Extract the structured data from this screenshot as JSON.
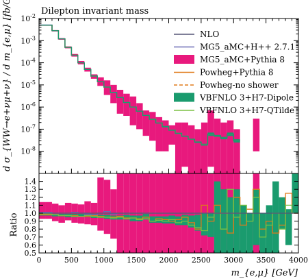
{
  "chart_data": [
    {
      "type": "line",
      "title": "Dilepton invariant mass",
      "xlabel": "",
      "ylabel": "d σ_{WW→e+νμ+ν} / d m_{e,μ} [fb/GeV]",
      "yscale": "log",
      "xlim": [
        0,
        4000
      ],
      "ylim": [
        1e-09,
        0.01
      ],
      "ytick_labels": [
        "10^-2",
        "10^-3",
        "10^-4",
        "10^-5",
        "10^-6",
        "10^-7",
        "10^-8"
      ],
      "bin_width": 100,
      "legend_position": "top-right",
      "series": [
        {
          "name": "NLO",
          "color": "#555577",
          "style": "step",
          "values": [
            0.005,
            0.005,
            0.0028,
            0.0012,
            0.0005,
            0.00022,
            0.0001,
            5e-05,
            2.6e-05,
            1.4e-05,
            8e-06,
            4.5e-06,
            2.7e-06,
            1.6e-06,
            1e-06,
            6.5e-07,
            4.2e-07,
            2.8e-07,
            1.9e-07,
            1.3e-07,
            9e-08,
            6.5e-08,
            4.8e-08,
            3.5e-08,
            2.6e-08,
            2e-08,
            6e-08,
            5e-08,
            4e-08,
            6e-08,
            3e-08,
            null,
            null,
            null,
            null,
            null,
            null,
            null,
            null,
            null
          ]
        },
        {
          "name": "MG5_aMC+H++ 2.7.1",
          "color": "#6a6ab5",
          "style": "step",
          "values": [
            0.0051,
            0.0051,
            0.0028,
            0.0012,
            0.0005,
            0.00022,
            0.0001,
            5e-05,
            2.5e-05,
            1.4e-05,
            8e-06,
            4.6e-06,
            2.7e-06,
            1.6e-06,
            1e-06,
            6.5e-07,
            4.2e-07,
            2.8e-07,
            1.9e-07,
            1.3e-07,
            9e-08,
            6.5e-08,
            4.8e-08,
            3.5e-08,
            2.6e-08,
            2e-08,
            6e-08,
            5e-08,
            4e-08,
            6e-08,
            3e-08,
            null,
            null,
            null,
            null,
            null,
            null,
            null,
            null,
            null
          ]
        },
        {
          "name": "MG5_aMC+Pythia 8",
          "color": "#e8197d",
          "style": "band",
          "values": [
            0.005,
            0.005,
            0.0028,
            0.0012,
            0.0005,
            0.00022,
            0.0001,
            5e-05,
            2.5e-05,
            1.4e-05,
            8e-06,
            4.5e-06,
            2.7e-06,
            1.6e-06,
            1e-06,
            6.5e-07,
            4.2e-07,
            2.8e-07,
            1.9e-07,
            1.3e-07,
            9e-08,
            6.5e-08,
            4.8e-08,
            3.5e-08,
            2.6e-08,
            2e-08,
            6e-08,
            5e-08,
            4e-08,
            6e-08,
            3e-08,
            null,
            null,
            null,
            null,
            null,
            null,
            null,
            null,
            null
          ],
          "low": [
            0.0047,
            0.0047,
            0.0026,
            0.0011,
            0.00045,
            0.00019,
            8.5e-05,
            4e-05,
            1.9e-05,
            9e-06,
            3.5e-06,
            1.5e-06,
            5e-07,
            4e-07,
            1.5e-07,
            1e-07,
            5e-08,
            3e-08,
            1e-08,
            1e-08,
            2e-08,
            1e-09,
            2e-09,
            1e-09,
            1e-09,
            1e-09,
            2e-09,
            1e-09,
            1e-09,
            1e-09,
            1e-09,
            null,
            null,
            1e-08,
            null,
            null,
            null,
            null,
            null,
            null
          ],
          "high": [
            0.0052,
            0.0052,
            0.003,
            0.0013,
            0.00055,
            0.00025,
            0.00012,
            6e-05,
            3e-05,
            2.2e-05,
            1.6e-05,
            1e-05,
            6e-06,
            4e-06,
            3e-06,
            1.5e-06,
            7e-07,
            6e-07,
            3.5e-07,
            2.5e-07,
            1.5e-07,
            2e-07,
            2e-07,
            1.5e-07,
            1e-07,
            2e-07,
            7e-07,
            3e-07,
            2e-07,
            2.5e-07,
            1e-07,
            null,
            null,
            3e-07,
            null,
            null,
            null,
            null,
            null,
            null
          ]
        },
        {
          "name": "Powheg+Pythia 8",
          "color": "#e07a1a",
          "style": "step",
          "values": [
            0.005,
            0.005,
            0.0028,
            0.0012,
            0.0005,
            0.00022,
            0.0001,
            5e-05,
            2.5e-05,
            1.4e-05,
            8e-06,
            4.5e-06,
            2.7e-06,
            1.6e-06,
            1e-06,
            6.5e-07,
            4.2e-07,
            2.8e-07,
            1.9e-07,
            1.3e-07,
            9e-08,
            6.5e-08,
            4.8e-08,
            3.5e-08,
            2.6e-08,
            2e-08,
            6e-08,
            5e-08,
            4e-08,
            6e-08,
            3e-08,
            null,
            null,
            null,
            null,
            null,
            null,
            null,
            null,
            null
          ]
        },
        {
          "name": "Powheg-no shower",
          "color": "#e07a1a",
          "style": "dashed",
          "values": [
            0.005,
            0.005,
            0.0028,
            0.0012,
            0.0005,
            0.00022,
            0.0001,
            5e-05,
            2.5e-05,
            1.4e-05,
            8e-06,
            4.5e-06,
            2.7e-06,
            1.6e-06,
            1e-06,
            6.5e-07,
            4.2e-07,
            2.8e-07,
            1.9e-07,
            1.3e-07,
            9e-08,
            6.5e-08,
            4.8e-08,
            3.5e-08,
            2.6e-08,
            2e-08,
            6e-08,
            5e-08,
            4e-08,
            6e-08,
            3e-08,
            null,
            null,
            null,
            null,
            null,
            null,
            null,
            null,
            null
          ]
        },
        {
          "name": "VBFNLO 3+H7-Dipole",
          "color": "#1a9b6e",
          "style": "band",
          "values": [
            0.005,
            0.005,
            0.0028,
            0.0012,
            0.0005,
            0.00022,
            0.0001,
            5e-05,
            2.5e-05,
            1.4e-05,
            8e-06,
            4.5e-06,
            2.7e-06,
            1.6e-06,
            1e-06,
            6.5e-07,
            4.2e-07,
            2.8e-07,
            1.9e-07,
            1.3e-07,
            9e-08,
            6.5e-08,
            4.8e-08,
            3.5e-08,
            2.6e-08,
            2e-08,
            6e-08,
            5e-08,
            4e-08,
            6e-08,
            3e-08,
            null,
            null,
            null,
            null,
            null,
            null,
            null,
            null,
            null
          ],
          "low": [
            0.0048,
            0.0048,
            0.0027,
            0.00115,
            0.00048,
            0.00021,
            9.6e-05,
            4.8e-05,
            2.4e-05,
            1.35e-05,
            7.7e-06,
            4.3e-06,
            2.6e-06,
            1.5e-06,
            9.5e-07,
            6.2e-07,
            4e-07,
            2.6e-07,
            1.8e-07,
            1.2e-07,
            8.5e-08,
            6e-08,
            4.5e-08,
            3.3e-08,
            2.4e-08,
            1.8e-08,
            5e-08,
            4.5e-08,
            3.5e-08,
            5e-08,
            2.5e-08,
            null,
            null,
            null,
            null,
            null,
            null,
            null,
            null,
            null
          ],
          "high": [
            0.0052,
            0.0052,
            0.0029,
            0.00125,
            0.00052,
            0.00023,
            0.000104,
            5.2e-05,
            2.6e-05,
            1.45e-05,
            8.3e-06,
            4.7e-06,
            2.8e-06,
            1.7e-06,
            1.05e-06,
            6.8e-07,
            4.4e-07,
            3e-07,
            2e-07,
            1.4e-07,
            9.5e-08,
            7e-08,
            5.1e-08,
            3.7e-08,
            2.8e-08,
            2.2e-08,
            7e-08,
            5.5e-08,
            4.5e-08,
            7e-08,
            3.5e-08,
            null,
            null,
            null,
            null,
            null,
            null,
            null,
            null,
            null
          ]
        },
        {
          "name": "VBFNLO 3+H7-QTilde",
          "color": "#7bc043",
          "style": "step",
          "values": [
            0.005,
            0.005,
            0.0028,
            0.0012,
            0.0005,
            0.00022,
            0.0001,
            5e-05,
            2.5e-05,
            1.4e-05,
            8e-06,
            4.5e-06,
            2.7e-06,
            1.6e-06,
            1e-06,
            6.5e-07,
            4.2e-07,
            2.8e-07,
            1.9e-07,
            1.3e-07,
            9e-08,
            6.5e-08,
            4.8e-08,
            3.5e-08,
            2.6e-08,
            2e-08,
            6e-08,
            5e-08,
            4e-08,
            6e-08,
            3e-08,
            null,
            null,
            null,
            null,
            null,
            null,
            null,
            null,
            null
          ]
        }
      ]
    },
    {
      "type": "line",
      "title": "",
      "xlabel": "m_{e,μ} [GeV]",
      "ylabel": "Ratio",
      "xlim": [
        0,
        4000
      ],
      "ylim": [
        0.5,
        1.5
      ],
      "xtick_labels": [
        "0",
        "500",
        "1000",
        "1500",
        "2000",
        "2500",
        "3000",
        "3500",
        "4000"
      ],
      "ytick_labels": [
        "0.5",
        "0.6",
        "0.7",
        "0.8",
        "0.9",
        "1.0",
        "1.1",
        "1.2",
        "1.3",
        "1.4"
      ],
      "bin_width": 100,
      "reference_line": 1.0,
      "series": [
        {
          "name": "MG5_aMC+Pythia 8",
          "color": "#e8197d",
          "style": "band",
          "low": [
            0.93,
            0.93,
            0.9,
            0.88,
            0.91,
            0.88,
            0.87,
            0.86,
            0.85,
            0.78,
            0.74,
            0.68,
            0.5,
            0.5,
            0.5,
            0.5,
            0.5,
            0.5,
            0.5,
            0.5,
            0.5,
            0.5,
            0.5,
            0.5,
            0.5,
            0.5,
            0.5,
            0.5,
            0.5,
            0.5,
            0.5,
            null,
            null,
            0.5,
            null,
            null,
            null,
            null,
            null,
            null
          ],
          "high": [
            1.14,
            1.14,
            1.12,
            1.1,
            1.13,
            1.12,
            1.11,
            1.15,
            1.13,
            1.45,
            1.42,
            1.3,
            1.5,
            1.5,
            1.5,
            1.5,
            1.5,
            1.5,
            1.5,
            1.5,
            1.5,
            1.5,
            1.5,
            1.5,
            1.5,
            1.5,
            1.5,
            1.5,
            1.5,
            1.5,
            1.5,
            null,
            null,
            1.5,
            null,
            null,
            null,
            null,
            null,
            null
          ]
        },
        {
          "name": "VBFNLO 3+H7-Dipole",
          "color": "#1a9b6e",
          "style": "band",
          "low": [
            0.97,
            0.97,
            0.96,
            0.96,
            0.95,
            0.95,
            0.96,
            0.95,
            0.94,
            0.94,
            0.93,
            0.92,
            0.92,
            0.92,
            0.9,
            0.9,
            0.92,
            0.88,
            0.88,
            0.87,
            0.87,
            0.85,
            0.85,
            0.82,
            0.78,
            0.72,
            0.7,
            0.5,
            0.5,
            0.5,
            0.5,
            0.5,
            0.5,
            0.6,
            0.5,
            0.5,
            0.5,
            0.8,
            0.6,
            1.0
          ],
          "high": [
            1.0,
            1.0,
            0.99,
            0.99,
            0.99,
            0.99,
            0.99,
            0.98,
            0.99,
            0.98,
            0.98,
            0.97,
            0.97,
            0.98,
            0.97,
            0.97,
            0.99,
            0.96,
            0.96,
            0.96,
            0.97,
            0.96,
            0.98,
            0.97,
            0.98,
            1.0,
            1.0,
            1.4,
            1.3,
            1.2,
            1.3,
            1.1,
            1.0,
            1.3,
            1.0,
            1.1,
            1.4,
            1.2,
            1.05,
            1.5
          ]
        },
        {
          "name": "Powheg+Pythia 8",
          "color": "#e07a1a",
          "style": "step",
          "values": [
            0.98,
            0.98,
            0.98,
            0.97,
            0.97,
            0.97,
            0.96,
            0.96,
            0.97,
            0.96,
            0.95,
            0.95,
            0.96,
            0.94,
            0.94,
            0.93,
            0.95,
            0.9,
            0.93,
            0.92,
            0.9,
            0.92,
            0.95,
            0.88,
            0.8,
            1.1,
            0.9,
            1.1,
            1.0,
            0.75,
            1.2,
            0.85,
            1.05,
            1.3,
            0.8,
            0.9,
            0.75,
            0.85,
            1.25,
            1.0
          ]
        },
        {
          "name": "Powheg-no shower",
          "color": "#e07a1a",
          "style": "dashed",
          "values": [
            1.0,
            1.0,
            1.0,
            1.0,
            1.0,
            1.0,
            1.0,
            1.0,
            1.0,
            1.0,
            1.0,
            1.0,
            1.0,
            1.0,
            1.0,
            1.0,
            1.0,
            1.0,
            1.0,
            1.0,
            1.0,
            1.0,
            1.0,
            1.0,
            1.0,
            1.0,
            1.0,
            1.0,
            1.0,
            1.0,
            1.0,
            null,
            null,
            null,
            null,
            null,
            null,
            null,
            null,
            null
          ]
        },
        {
          "name": "VBFNLO 3+H7-QTilde",
          "color": "#7bc043",
          "style": "step",
          "values": [
            0.99,
            0.99,
            0.98,
            0.97,
            0.97,
            0.96,
            0.96,
            0.97,
            0.96,
            0.95,
            0.95,
            0.94,
            0.95,
            0.93,
            0.94,
            0.92,
            0.93,
            0.9,
            0.91,
            0.9,
            0.92,
            0.88,
            0.9,
            0.85,
            0.82,
            0.78,
            0.95,
            1.0,
            0.8,
            1.3,
            0.95,
            1.1,
            0.9,
            1.2,
            0.7,
            0.85,
            1.0,
            0.8,
            1.1,
            1.0
          ]
        },
        {
          "name": "MG5_aMC+H++ 2.7.1",
          "color": "#6a6ab5",
          "style": "step",
          "values": [
            1.01,
            1.01,
            1.0,
            1.0,
            1.0,
            1.01,
            1.0,
            0.99,
            0.98,
            1.0,
            1.02,
            0.99,
            1.0,
            1.0,
            1.0,
            1.0,
            1.0,
            1.0,
            1.0,
            1.0,
            1.0,
            1.0,
            1.0,
            1.0,
            1.0,
            1.0,
            1.0,
            1.0,
            1.0,
            1.0,
            1.0,
            null,
            null,
            null,
            null,
            null,
            null,
            null,
            null,
            null
          ]
        }
      ]
    }
  ]
}
